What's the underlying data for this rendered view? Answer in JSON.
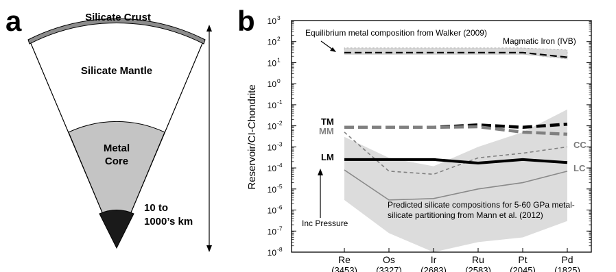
{
  "panel_a": {
    "letter": "a",
    "crust_label": "Silicate Crust",
    "mantle_label": "Silicate Mantle",
    "core_label_line1": "Metal",
    "core_label_line2": "Core",
    "depth_line1": "10 to",
    "depth_line2": "1000’s km",
    "colors": {
      "crust": "#8c8c8c",
      "mantle": "#ffffff",
      "core": "#c4c4c4",
      "tip": "#1a1a1a"
    }
  },
  "panel_b": {
    "letter": "b",
    "ylabel": "Reservoir/CI-Chondrite",
    "annotations": {
      "walker": "Equilibrium metal composition from Walker (2009)",
      "iron": "Magmatic Iron (IVB)",
      "predicted_line1": "Predicted silicate compositions for 5-60 GPa metal-",
      "predicted_line2": "silicate partitioning from Mann et al. (2012)",
      "pressure": "Inc Pressure"
    },
    "series_labels": {
      "TM": "TM",
      "MM": "MM",
      "CC": "CC",
      "LM": "LM",
      "LC": "LC"
    }
  },
  "chart_data": {
    "type": "line",
    "yscale": "log",
    "ylabel": "Reservoir/CI-Chondrite",
    "ylim": [
      1e-08,
      1000
    ],
    "ytick_labels": [
      {
        "value": 1000,
        "base": "10",
        "exp": "3"
      },
      {
        "value": 100,
        "base": "10",
        "exp": "2"
      },
      {
        "value": 10,
        "base": "10",
        "exp": "1"
      },
      {
        "value": 1,
        "base": "10",
        "exp": "0"
      },
      {
        "value": 0.1,
        "base": "10",
        "exp": "-1"
      },
      {
        "value": 0.01,
        "base": "10",
        "exp": "-2"
      },
      {
        "value": 0.001,
        "base": "10",
        "exp": "-3"
      },
      {
        "value": 0.0001,
        "base": "10",
        "exp": "-4"
      },
      {
        "value": 1e-05,
        "base": "10",
        "exp": "-5"
      },
      {
        "value": 1e-06,
        "base": "10",
        "exp": "-6"
      },
      {
        "value": 1e-07,
        "base": "10",
        "exp": "-7"
      },
      {
        "value": 1e-08,
        "base": "10",
        "exp": "-8"
      }
    ],
    "categories": [
      "Re",
      "Os",
      "Ir",
      "Ru",
      "Pt",
      "Pd"
    ],
    "category_sublabels": [
      "(3453)",
      "(3327)",
      "(2683)",
      "(2583)",
      "(2045)",
      "(1825)"
    ],
    "series": [
      {
        "name": "Magmatic Iron (IVB)",
        "values": [
          30,
          30,
          30,
          30,
          30,
          18
        ],
        "style": "dashed",
        "color": "#000000"
      },
      {
        "name": "TM",
        "values": [
          0.0085,
          0.0085,
          0.0085,
          0.011,
          0.0085,
          0.012
        ],
        "style": "dash-bold",
        "color": "#000000"
      },
      {
        "name": "MM",
        "values": [
          0.0085,
          0.0085,
          0.0085,
          0.009,
          0.005,
          0.004
        ],
        "style": "dash-bold",
        "color": "#808080"
      },
      {
        "name": "CC",
        "values": [
          0.005,
          7e-05,
          5e-05,
          0.0003,
          0.0005,
          0.001
        ],
        "style": "dashed",
        "color": "#808080"
      },
      {
        "name": "LM",
        "values": [
          0.00025,
          0.00025,
          0.00025,
          0.00017,
          0.00025,
          0.00018
        ],
        "style": "solid-bold",
        "color": "#000000"
      },
      {
        "name": "LC",
        "values": [
          8e-05,
          3e-06,
          3.5e-06,
          1e-05,
          2e-05,
          7e-05
        ],
        "style": "solid",
        "color": "#8a8a8a"
      }
    ],
    "bands": [
      {
        "upper": [
          50,
          50,
          50,
          50,
          50,
          40
        ],
        "lower": [
          25,
          25,
          25,
          25,
          25,
          15
        ],
        "color": "#d8d8d8"
      },
      {
        "upper": [
          0.003,
          0.0003,
          0.00012,
          0.001,
          0.005,
          0.06
        ],
        "lower": [
          3e-06,
          8e-08,
          1e-08,
          3e-08,
          5e-08,
          3e-07
        ],
        "color": "#dcdcdc"
      }
    ]
  }
}
